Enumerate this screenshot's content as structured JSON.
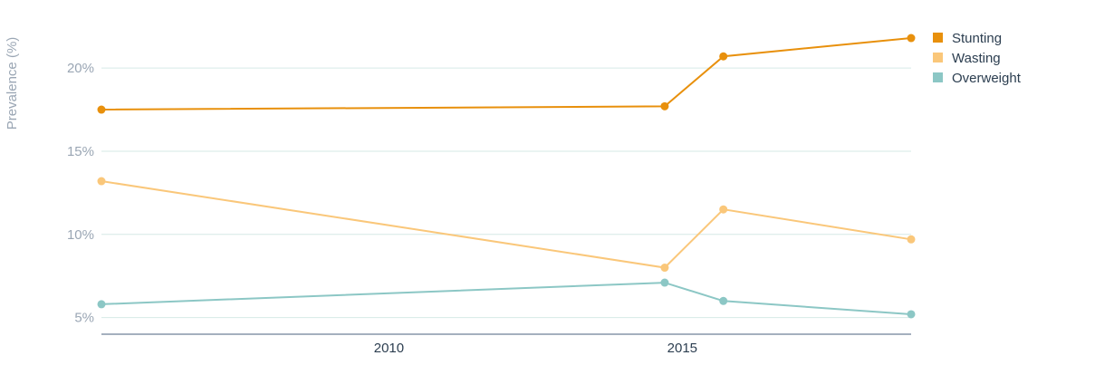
{
  "chart_data": {
    "type": "line",
    "ylabel": "Prevalence (%)",
    "x_range": [
      2005.1,
      2018.9
    ],
    "ylim": [
      4.0,
      23.0
    ],
    "y_ticks": [
      5,
      10,
      15,
      20
    ],
    "y_tick_labels": [
      "5%",
      "10%",
      "15%",
      "20%"
    ],
    "x_ticks": [
      2010,
      2015
    ],
    "x_tick_labels": [
      "2010",
      "2015"
    ],
    "grid": true,
    "legend_position": "top-right",
    "series": [
      {
        "name": "Stunting",
        "color": "#E8900C",
        "x": [
          2005.1,
          2014.7,
          2015.7,
          2018.9
        ],
        "y": [
          17.5,
          17.7,
          20.7,
          21.8
        ]
      },
      {
        "name": "Wasting",
        "color": "#FAC77A",
        "x": [
          2005.1,
          2014.7,
          2015.7,
          2018.9
        ],
        "y": [
          13.2,
          8.0,
          11.5,
          9.7
        ]
      },
      {
        "name": "Overweight",
        "color": "#8CC7C5",
        "x": [
          2005.1,
          2014.7,
          2015.7,
          2018.9
        ],
        "y": [
          5.8,
          7.1,
          6.0,
          5.2
        ]
      }
    ]
  }
}
